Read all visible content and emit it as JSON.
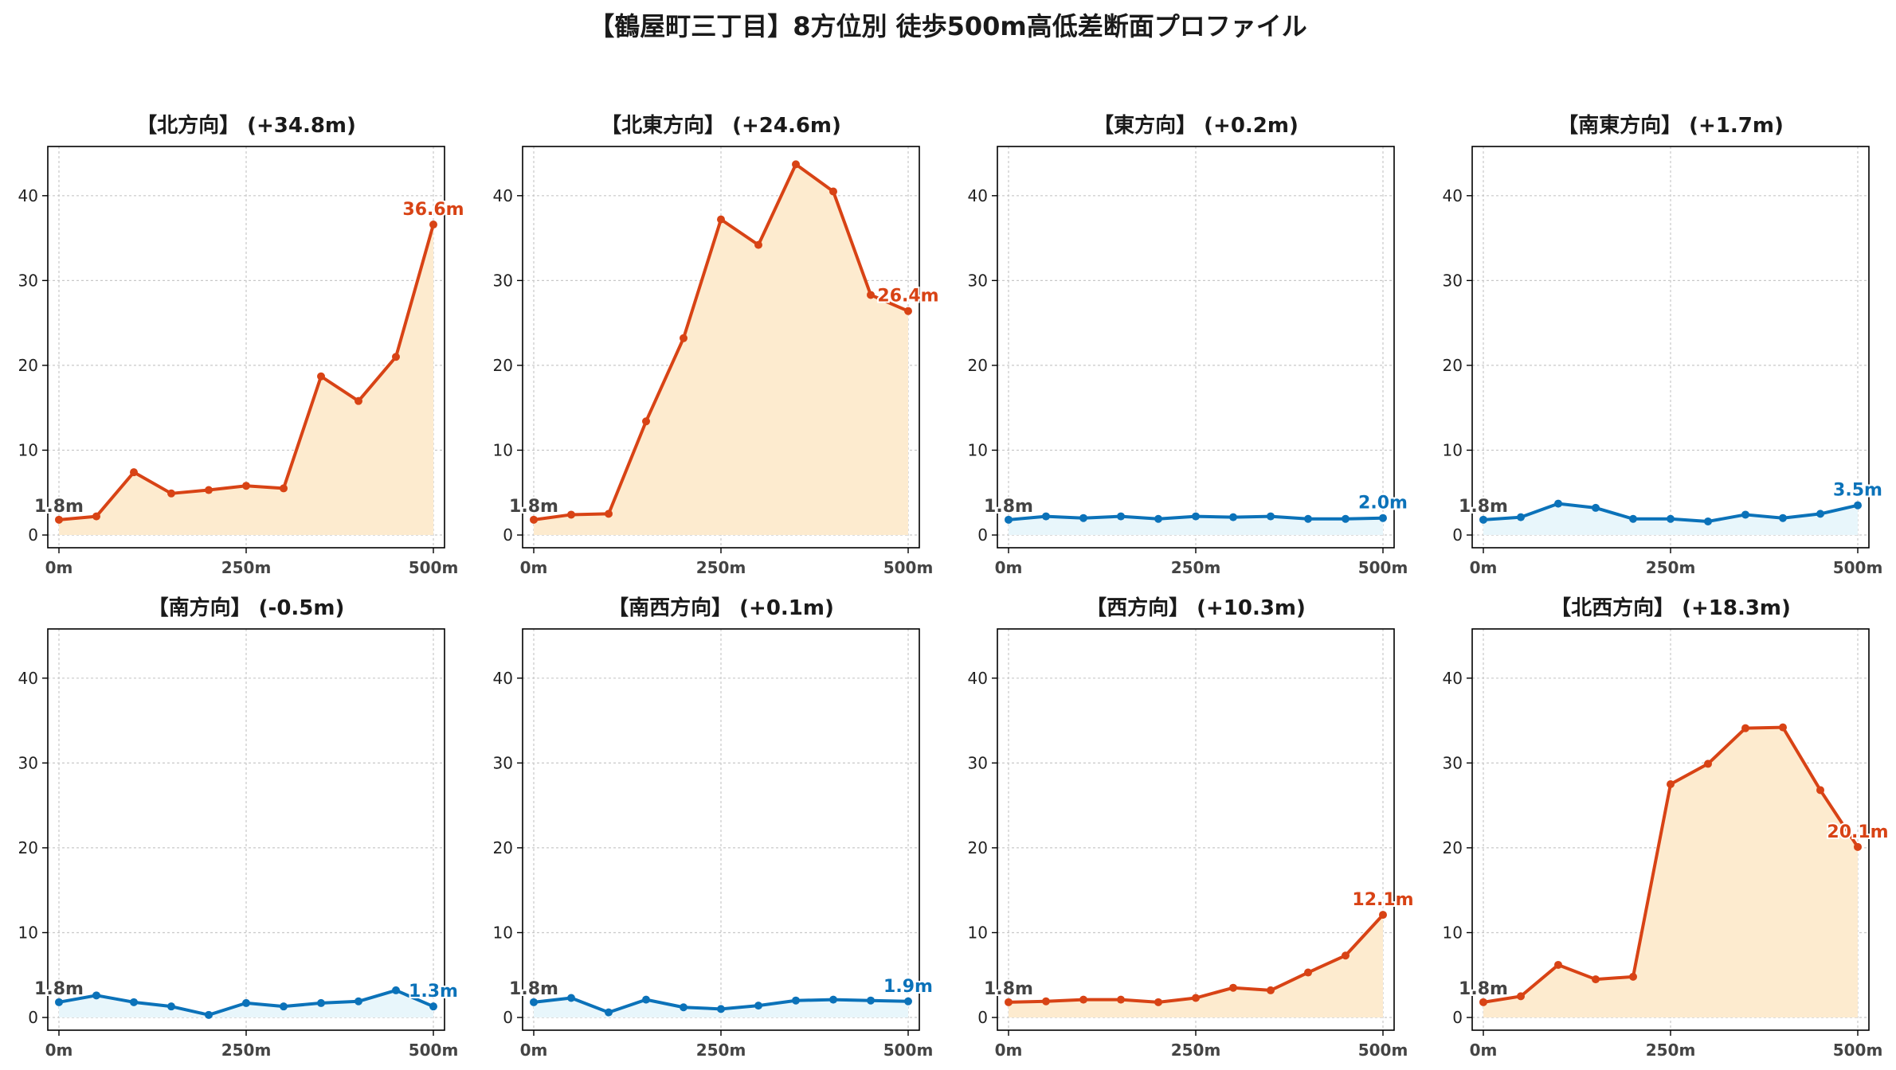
{
  "figure": {
    "title": "【鶴屋町三丁目】8方位別 徒歩500m高低差断面プロファイル",
    "up_color": "#d84315",
    "up_fill": "#fdebcf",
    "down_color": "#0b72b9",
    "down_fill": "#e8f6fb"
  },
  "chart_data": [
    {
      "type": "area",
      "title": "【北方向】 (+34.8m)",
      "trend": "up",
      "x": [
        0,
        50,
        100,
        150,
        200,
        250,
        300,
        350,
        400,
        450,
        500
      ],
      "y": [
        1.8,
        2.2,
        7.4,
        4.9,
        5.3,
        5.8,
        5.5,
        18.7,
        15.8,
        21.0,
        36.6
      ],
      "start_label": "1.8m",
      "end_label": "36.6m",
      "xticks": [
        "0m",
        "250m",
        "500m"
      ],
      "yticks": [
        "0",
        "10",
        "20",
        "30",
        "40"
      ],
      "xlim": [
        0,
        500
      ],
      "ylim": [
        -1.5,
        45.8
      ],
      "grid": true
    },
    {
      "type": "area",
      "title": "【北東方向】 (+24.6m)",
      "trend": "up",
      "x": [
        0,
        50,
        100,
        150,
        200,
        250,
        300,
        350,
        400,
        450,
        500
      ],
      "y": [
        1.8,
        2.4,
        2.5,
        13.4,
        23.2,
        37.2,
        34.2,
        43.7,
        40.5,
        28.3,
        26.4
      ],
      "start_label": "1.8m",
      "end_label": "26.4m",
      "xticks": [
        "0m",
        "250m",
        "500m"
      ],
      "yticks": [
        "0",
        "10",
        "20",
        "30",
        "40"
      ],
      "xlim": [
        0,
        500
      ],
      "ylim": [
        -1.5,
        45.8
      ],
      "grid": true
    },
    {
      "type": "area",
      "title": "【東方向】 (+0.2m)",
      "trend": "down",
      "x": [
        0,
        50,
        100,
        150,
        200,
        250,
        300,
        350,
        400,
        450,
        500
      ],
      "y": [
        1.8,
        2.2,
        2.0,
        2.2,
        1.9,
        2.2,
        2.1,
        2.2,
        1.9,
        1.9,
        2.0
      ],
      "start_label": "1.8m",
      "end_label": "2.0m",
      "xticks": [
        "0m",
        "250m",
        "500m"
      ],
      "yticks": [
        "0",
        "10",
        "20",
        "30",
        "40"
      ],
      "xlim": [
        0,
        500
      ],
      "ylim": [
        -1.5,
        45.8
      ],
      "grid": true
    },
    {
      "type": "area",
      "title": "【南東方向】 (+1.7m)",
      "trend": "down",
      "x": [
        0,
        50,
        100,
        150,
        200,
        250,
        300,
        350,
        400,
        450,
        500
      ],
      "y": [
        1.8,
        2.1,
        3.7,
        3.2,
        1.9,
        1.9,
        1.6,
        2.4,
        2.0,
        2.5,
        3.5
      ],
      "start_label": "1.8m",
      "end_label": "3.5m",
      "xticks": [
        "0m",
        "250m",
        "500m"
      ],
      "yticks": [
        "0",
        "10",
        "20",
        "30",
        "40"
      ],
      "xlim": [
        0,
        500
      ],
      "ylim": [
        -1.5,
        45.8
      ],
      "grid": true
    },
    {
      "type": "area",
      "title": "【南方向】 (-0.5m)",
      "trend": "down",
      "x": [
        0,
        50,
        100,
        150,
        200,
        250,
        300,
        350,
        400,
        450,
        500
      ],
      "y": [
        1.8,
        2.6,
        1.8,
        1.3,
        0.3,
        1.7,
        1.3,
        1.7,
        1.9,
        3.2,
        1.3
      ],
      "start_label": "1.8m",
      "end_label": "1.3m",
      "xticks": [
        "0m",
        "250m",
        "500m"
      ],
      "yticks": [
        "0",
        "10",
        "20",
        "30",
        "40"
      ],
      "xlim": [
        0,
        500
      ],
      "ylim": [
        -1.5,
        45.8
      ],
      "grid": true
    },
    {
      "type": "area",
      "title": "【南西方向】 (+0.1m)",
      "trend": "down",
      "x": [
        0,
        50,
        100,
        150,
        200,
        250,
        300,
        350,
        400,
        450,
        500
      ],
      "y": [
        1.8,
        2.3,
        0.6,
        2.1,
        1.2,
        1.0,
        1.4,
        2.0,
        2.1,
        2.0,
        1.9
      ],
      "start_label": "1.8m",
      "end_label": "1.9m",
      "xticks": [
        "0m",
        "250m",
        "500m"
      ],
      "yticks": [
        "0",
        "10",
        "20",
        "30",
        "40"
      ],
      "xlim": [
        0,
        500
      ],
      "ylim": [
        -1.5,
        45.8
      ],
      "grid": true
    },
    {
      "type": "area",
      "title": "【西方向】 (+10.3m)",
      "trend": "up",
      "x": [
        0,
        50,
        100,
        150,
        200,
        250,
        300,
        350,
        400,
        450,
        500
      ],
      "y": [
        1.8,
        1.9,
        2.1,
        2.1,
        1.8,
        2.3,
        3.5,
        3.2,
        5.3,
        7.3,
        12.1
      ],
      "start_label": "1.8m",
      "end_label": "12.1m",
      "xticks": [
        "0m",
        "250m",
        "500m"
      ],
      "yticks": [
        "0",
        "10",
        "20",
        "30",
        "40"
      ],
      "xlim": [
        0,
        500
      ],
      "ylim": [
        -1.5,
        45.8
      ],
      "grid": true
    },
    {
      "type": "area",
      "title": "【北西方向】 (+18.3m)",
      "trend": "up",
      "x": [
        0,
        50,
        100,
        150,
        200,
        250,
        300,
        350,
        400,
        450,
        500
      ],
      "y": [
        1.8,
        2.5,
        6.2,
        4.5,
        4.8,
        27.5,
        29.9,
        34.1,
        34.2,
        26.8,
        20.1
      ],
      "start_label": "1.8m",
      "end_label": "20.1m",
      "xticks": [
        "0m",
        "250m",
        "500m"
      ],
      "yticks": [
        "0",
        "10",
        "20",
        "30",
        "40"
      ],
      "xlim": [
        0,
        500
      ],
      "ylim": [
        -1.5,
        45.8
      ],
      "grid": true
    }
  ]
}
